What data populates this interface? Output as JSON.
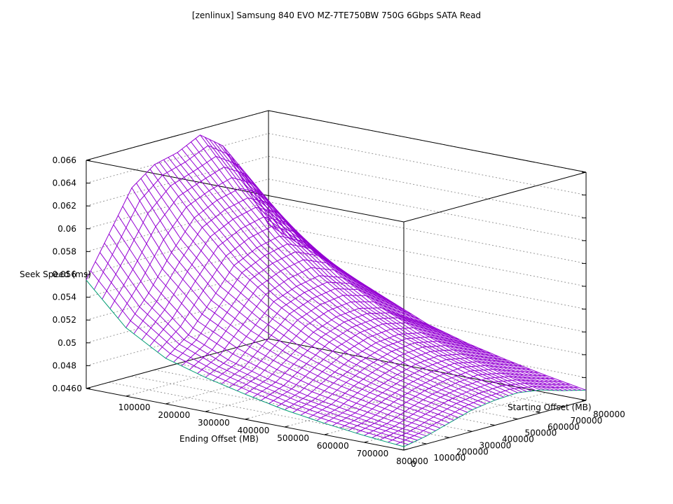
{
  "chart_data": {
    "type": "surface3d",
    "title": "[zenlinux] Samsung 840 EVO MZ-7TE750BW 750G 6Gbps SATA Read",
    "xlabel": "Ending Offset (MB)",
    "ylabel": "Starting Offset (MB)",
    "zlabel": "Seek Speed (ms)",
    "xlim": [
      0,
      800000
    ],
    "ylim": [
      0,
      800000
    ],
    "zlim": [
      0.046,
      0.066
    ],
    "x_ticks": [
      "0",
      "100000",
      "200000",
      "300000",
      "400000",
      "500000",
      "600000",
      "700000",
      "800000"
    ],
    "y_ticks": [
      "0",
      "100000",
      "200000",
      "300000",
      "400000",
      "500000",
      "600000",
      "700000",
      "800000"
    ],
    "z_ticks": [
      "0.046",
      "0.048",
      "0.05",
      "0.052",
      "0.054",
      "0.056",
      "0.058",
      "0.06",
      "0.062",
      "0.064",
      "0.066"
    ],
    "grid": true,
    "colors": {
      "top_surface": "#9400d3",
      "bottom_surface": "#009e73"
    },
    "surface": {
      "note_rows": "z values (ms) sampled on a 9x9 grid; rows = ending offset 0..800000, columns = starting offset 0..800000",
      "x": [
        0,
        100000,
        200000,
        300000,
        400000,
        500000,
        600000,
        700000,
        800000
      ],
      "y": [
        0,
        100000,
        200000,
        300000,
        400000,
        500000,
        600000,
        700000,
        800000
      ],
      "z": [
        [
          0.0555,
          0.059,
          0.0625,
          0.064,
          0.0645,
          0.0655,
          0.064,
          0.06,
          0.056
        ],
        [
          0.052,
          0.0545,
          0.0575,
          0.06,
          0.061,
          0.0615,
          0.0605,
          0.0575,
          0.0545
        ],
        [
          0.05,
          0.0515,
          0.054,
          0.0565,
          0.0575,
          0.058,
          0.057,
          0.055,
          0.053
        ],
        [
          0.049,
          0.05,
          0.052,
          0.054,
          0.0548,
          0.0552,
          0.0545,
          0.053,
          0.0515
        ],
        [
          0.0482,
          0.049,
          0.0505,
          0.052,
          0.0528,
          0.053,
          0.0525,
          0.0512,
          0.05
        ],
        [
          0.0475,
          0.0482,
          0.0494,
          0.0505,
          0.0512,
          0.0514,
          0.051,
          0.05,
          0.049
        ],
        [
          0.047,
          0.0476,
          0.0486,
          0.0494,
          0.05,
          0.0502,
          0.0498,
          0.049,
          0.0482
        ],
        [
          0.0466,
          0.0471,
          0.0479,
          0.0486,
          0.049,
          0.0492,
          0.0488,
          0.0481,
          0.0475
        ],
        [
          0.0463,
          0.0467,
          0.0473,
          0.0479,
          0.0482,
          0.0483,
          0.048,
          0.0474,
          0.0469
        ]
      ]
    }
  }
}
